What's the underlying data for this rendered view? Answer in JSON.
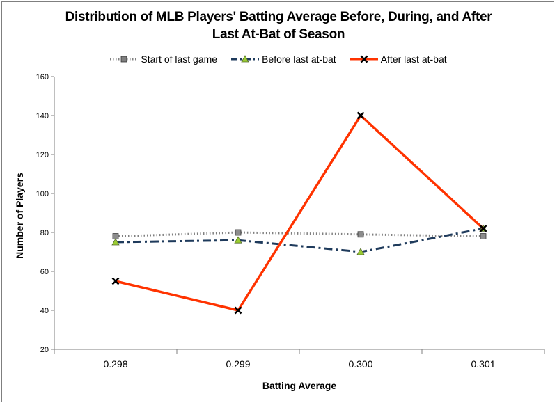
{
  "chart_data": {
    "type": "line",
    "title_line1": "Distribution of MLB Players' Batting Average Before, During, and After",
    "title_line2": "Last At-Bat of Season",
    "xlabel": "Batting Average",
    "ylabel": "Number of Players",
    "categories": [
      "0.298",
      "0.299",
      "0.300",
      "0.301"
    ],
    "ylim": [
      20,
      160
    ],
    "yticks": [
      20,
      40,
      60,
      80,
      100,
      120,
      140,
      160
    ],
    "grid": false,
    "legend_position": "top",
    "series": [
      {
        "name": "Start of last game",
        "values": [
          78,
          80,
          79,
          78
        ],
        "color": "#7f7f7f",
        "line_style": "dotted",
        "marker": "square"
      },
      {
        "name": "Before last at-bat",
        "values": [
          75,
          76,
          70,
          82
        ],
        "color": "#1f3b5c",
        "line_style": "dash-dot",
        "marker": "triangle"
      },
      {
        "name": "After last at-bat",
        "values": [
          55,
          40,
          140,
          82
        ],
        "color": "#ff3300",
        "line_style": "solid",
        "marker": "x"
      }
    ]
  }
}
